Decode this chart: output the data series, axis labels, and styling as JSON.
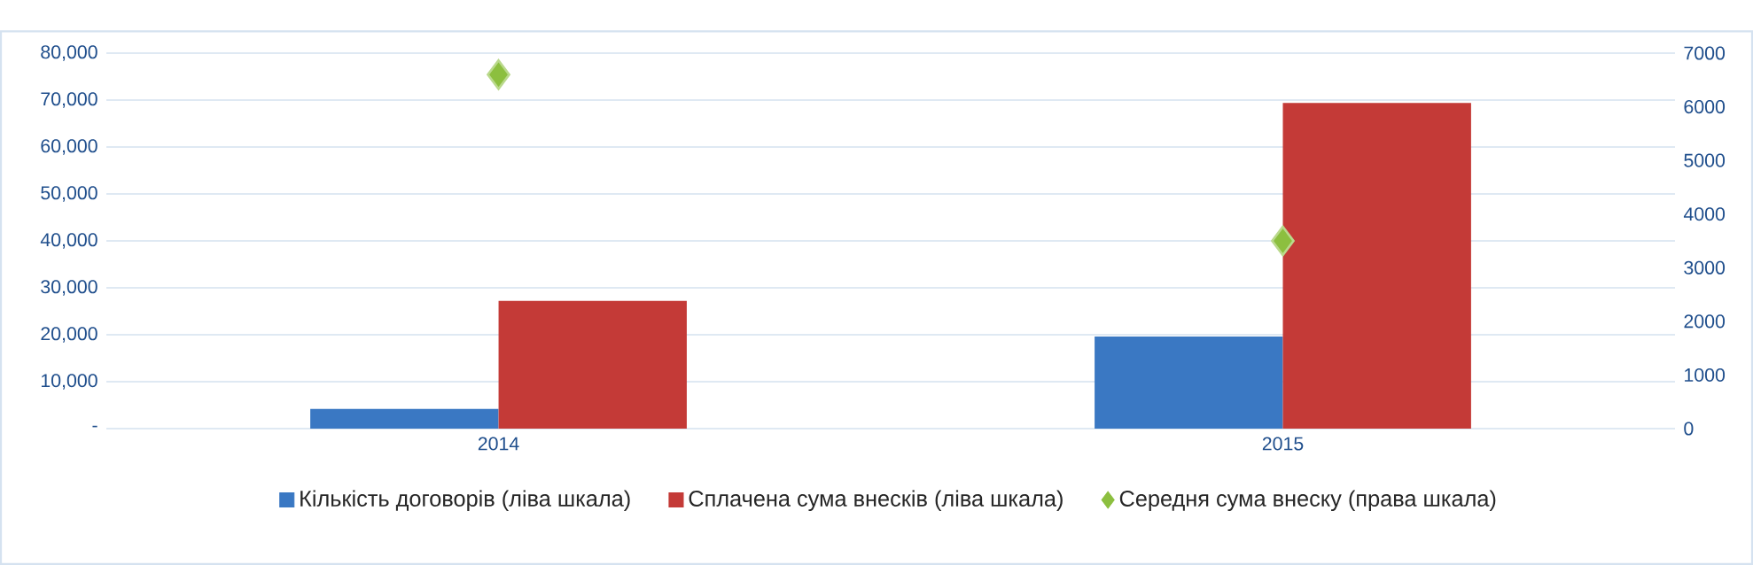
{
  "chart_data": {
    "type": "bar",
    "categories": [
      "2014",
      "2015"
    ],
    "series": [
      {
        "name": "Кількість договорів (ліва шкала)",
        "color": "#3a78c3",
        "values": [
          4200,
          19600
        ]
      },
      {
        "name": "Сплачена сума внесків (ліва шкала)",
        "color": "#c43a37",
        "values": [
          27200,
          69400
        ]
      },
      {
        "name": "Середня сума внеску (права шкала)",
        "type": "scatter",
        "axis": "y2",
        "marker": "diamond",
        "color": "#8cbf3f",
        "values": [
          6600,
          3500
        ]
      }
    ],
    "ylim": [
      0,
      80000
    ],
    "yticks": [
      {
        "value": 0,
        "label": "-"
      },
      {
        "value": 10000,
        "label": "10,000"
      },
      {
        "value": 20000,
        "label": "20,000"
      },
      {
        "value": 30000,
        "label": "30,000"
      },
      {
        "value": 40000,
        "label": "40,000"
      },
      {
        "value": 50000,
        "label": "50,000"
      },
      {
        "value": 60000,
        "label": "60,000"
      },
      {
        "value": 70000,
        "label": "70,000"
      },
      {
        "value": 80000,
        "label": "80,000"
      }
    ],
    "y2lim": [
      0,
      7000
    ],
    "y2ticks": [
      0,
      1000,
      2000,
      3000,
      4000,
      5000,
      6000,
      7000
    ],
    "grid": "y",
    "legend": "bottom"
  }
}
